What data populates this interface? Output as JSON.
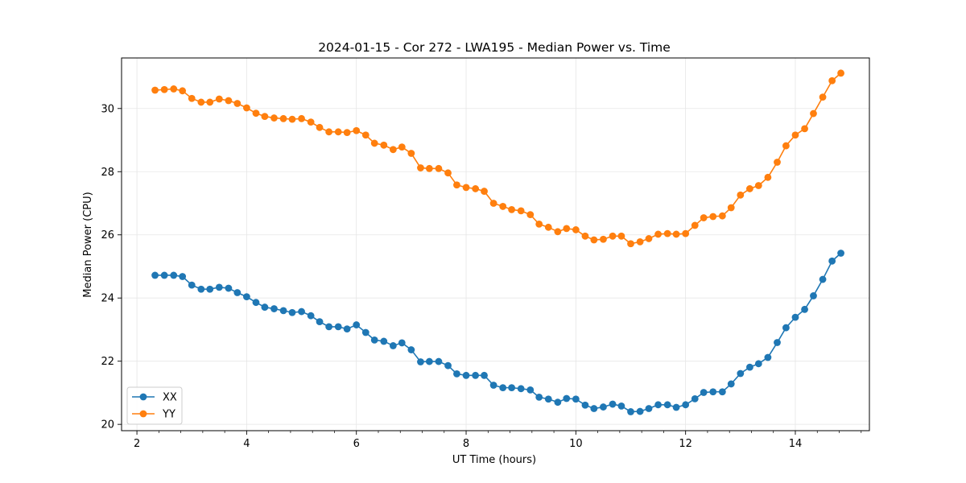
{
  "chart_data": {
    "type": "line",
    "title": "2024-01-15 - Cor 272 - LWA195 - Median Power vs. Time",
    "xlabel": "UT Time (hours)",
    "ylabel": "Median Power (CPU)",
    "xlim": [
      1.72,
      15.35
    ],
    "ylim": [
      19.8,
      31.6
    ],
    "xticks": [
      2,
      4,
      6,
      8,
      10,
      12,
      14
    ],
    "yticks": [
      20,
      22,
      24,
      26,
      28,
      30
    ],
    "x_minor_step": 0.4,
    "grid": true,
    "legend_position": "lower-left",
    "x": [
      2.33,
      2.5,
      2.67,
      2.83,
      3.0,
      3.17,
      3.33,
      3.5,
      3.67,
      3.83,
      4.0,
      4.17,
      4.33,
      4.5,
      4.67,
      4.83,
      5.0,
      5.17,
      5.33,
      5.5,
      5.67,
      5.83,
      6.0,
      6.17,
      6.33,
      6.5,
      6.67,
      6.83,
      7.0,
      7.17,
      7.33,
      7.5,
      7.67,
      7.83,
      8.0,
      8.17,
      8.33,
      8.5,
      8.67,
      8.83,
      9.0,
      9.17,
      9.33,
      9.5,
      9.67,
      9.83,
      10.0,
      10.17,
      10.33,
      10.5,
      10.67,
      10.83,
      11.0,
      11.17,
      11.33,
      11.5,
      11.67,
      11.83,
      12.0,
      12.17,
      12.33,
      12.5,
      12.67,
      12.83,
      13.0,
      13.17,
      13.33,
      13.5,
      13.67,
      13.83,
      14.0,
      14.17,
      14.33,
      14.5,
      14.67,
      14.83
    ],
    "series": [
      {
        "name": "XX",
        "color": "#1f77b4",
        "values": [
          24.72,
          24.72,
          24.72,
          24.68,
          24.41,
          24.28,
          24.28,
          24.34,
          24.31,
          24.17,
          24.04,
          23.86,
          23.71,
          23.66,
          23.6,
          23.54,
          23.57,
          23.44,
          23.25,
          23.09,
          23.09,
          23.02,
          23.15,
          22.91,
          22.67,
          22.63,
          22.49,
          22.58,
          22.36,
          21.98,
          21.99,
          21.99,
          21.86,
          21.6,
          21.55,
          21.55,
          21.55,
          21.24,
          21.16,
          21.16,
          21.13,
          21.09,
          20.86,
          20.8,
          20.7,
          20.82,
          20.8,
          20.61,
          20.5,
          20.55,
          20.64,
          20.58,
          20.4,
          20.41,
          20.5,
          20.62,
          20.62,
          20.54,
          20.62,
          20.81,
          21.01,
          21.03,
          21.03,
          21.28,
          21.61,
          21.81,
          21.92,
          22.12,
          22.59,
          23.06,
          23.39,
          23.64,
          24.07,
          24.59,
          25.17,
          25.42
        ]
      },
      {
        "name": "YY",
        "color": "#ff7f0e",
        "values": [
          30.58,
          30.6,
          30.62,
          30.56,
          30.32,
          30.2,
          30.2,
          30.3,
          30.25,
          30.16,
          30.02,
          29.85,
          29.75,
          29.7,
          29.68,
          29.66,
          29.68,
          29.57,
          29.4,
          29.26,
          29.26,
          29.24,
          29.3,
          29.16,
          28.9,
          28.84,
          28.7,
          28.78,
          28.58,
          28.12,
          28.1,
          28.1,
          27.96,
          27.58,
          27.5,
          27.46,
          27.38,
          27.0,
          26.9,
          26.8,
          26.76,
          26.64,
          26.34,
          26.24,
          26.1,
          26.2,
          26.16,
          25.96,
          25.84,
          25.86,
          25.96,
          25.96,
          25.72,
          25.78,
          25.88,
          26.02,
          26.04,
          26.02,
          26.04,
          26.3,
          26.54,
          26.58,
          26.6,
          26.86,
          27.26,
          27.46,
          27.56,
          27.82,
          28.3,
          28.82,
          29.16,
          29.36,
          29.84,
          30.36,
          30.88,
          31.12
        ]
      }
    ]
  }
}
